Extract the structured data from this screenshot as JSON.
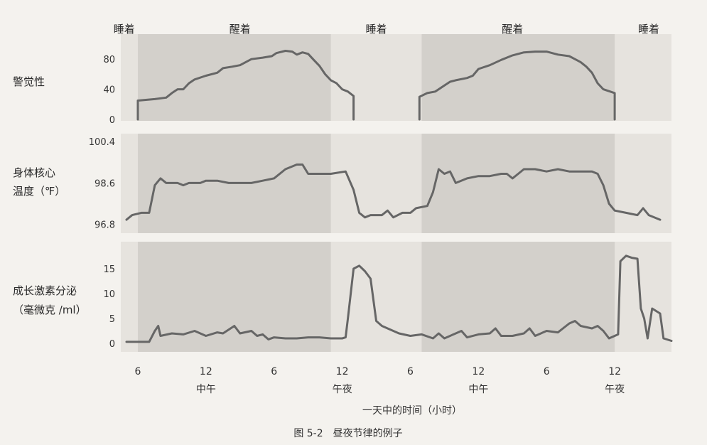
{
  "chart_data": {
    "type": "line",
    "caption": "图 5-2　昼夜节律的例子",
    "xlabel": "一天中的时间（小时）",
    "x_unit": "hours from 6 (first day)",
    "xlim": [
      4.5,
      53
    ],
    "x_ticks": [
      {
        "x": 6,
        "label": "6"
      },
      {
        "x": 12,
        "label": "12",
        "sub": "中午"
      },
      {
        "x": 18,
        "label": "6"
      },
      {
        "x": 24,
        "label": "12",
        "sub": "午夜"
      },
      {
        "x": 30,
        "label": "6"
      },
      {
        "x": 36,
        "label": "12",
        "sub": "中午"
      },
      {
        "x": 42,
        "label": "6"
      },
      {
        "x": 48,
        "label": "12",
        "sub": "午夜"
      }
    ],
    "states": [
      {
        "label": "睡着",
        "x_center": 4.8
      },
      {
        "label": "醒着",
        "x_center": 15
      },
      {
        "label": "睡着",
        "x_center": 27
      },
      {
        "label": "醒着",
        "x_center": 39
      },
      {
        "label": "睡着",
        "x_center": 51
      }
    ],
    "wake_periods": [
      [
        6,
        23
      ],
      [
        31,
        48
      ]
    ],
    "panels": [
      {
        "id": "alertness",
        "ylabel": [
          "警觉性"
        ],
        "ylim": [
          0,
          100
        ],
        "yticks": [
          {
            "v": 80,
            "label": "80"
          },
          {
            "v": 40,
            "label": "40"
          },
          {
            "v": 0,
            "label": "0"
          }
        ],
        "segments": [
          [
            [
              6,
              0
            ],
            [
              6,
              25
            ],
            [
              7.5,
              27
            ],
            [
              8.5,
              29
            ],
            [
              9,
              35
            ],
            [
              9.5,
              40
            ],
            [
              10,
              40
            ],
            [
              10.5,
              48
            ],
            [
              11,
              53
            ],
            [
              12,
              58
            ],
            [
              13,
              62
            ],
            [
              13.5,
              68
            ],
            [
              14.3,
              70
            ],
            [
              15,
              72
            ],
            [
              15.5,
              76
            ],
            [
              16,
              80
            ],
            [
              17,
              82
            ],
            [
              17.8,
              84
            ],
            [
              18.2,
              88
            ],
            [
              19,
              91
            ],
            [
              19.6,
              90
            ],
            [
              20,
              86
            ],
            [
              20.5,
              89
            ],
            [
              21,
              87
            ],
            [
              21.5,
              79
            ],
            [
              22,
              71
            ],
            [
              22.5,
              60
            ],
            [
              23,
              52
            ],
            [
              23.5,
              48
            ],
            [
              24,
              40
            ],
            [
              24.5,
              37
            ],
            [
              25,
              31
            ],
            [
              25,
              0
            ]
          ],
          [
            [
              30.8,
              0
            ],
            [
              30.8,
              30
            ],
            [
              31.5,
              35
            ],
            [
              32.2,
              37
            ],
            [
              33,
              45
            ],
            [
              33.5,
              50
            ],
            [
              34,
              52
            ],
            [
              35,
              55
            ],
            [
              35.5,
              58
            ],
            [
              36,
              67
            ],
            [
              37,
              72
            ],
            [
              38,
              79
            ],
            [
              39,
              85
            ],
            [
              40,
              89
            ],
            [
              41,
              90
            ],
            [
              42,
              90
            ],
            [
              42.5,
              88
            ],
            [
              43,
              86
            ],
            [
              44,
              84
            ],
            [
              44.5,
              80
            ],
            [
              45,
              76
            ],
            [
              45.5,
              70
            ],
            [
              46,
              62
            ],
            [
              46.5,
              48
            ],
            [
              47,
              40
            ],
            [
              48,
              35
            ],
            [
              48,
              0
            ]
          ]
        ]
      },
      {
        "id": "core-temperature",
        "ylabel": [
          "身体核心",
          "温度（℉）"
        ],
        "ylim": [
          96.6,
          100.5
        ],
        "yticks": [
          {
            "v": 100.4,
            "label": "100.4"
          },
          {
            "v": 98.6,
            "label": "98.6"
          },
          {
            "v": 96.8,
            "label": "96.8"
          }
        ],
        "segments": [
          [
            [
              5,
              97.0
            ],
            [
              5.5,
              97.2
            ],
            [
              6.3,
              97.3
            ],
            [
              7,
              97.3
            ],
            [
              7.5,
              98.5
            ],
            [
              8,
              98.8
            ],
            [
              8.5,
              98.6
            ],
            [
              9.5,
              98.6
            ],
            [
              10,
              98.5
            ],
            [
              10.5,
              98.6
            ],
            [
              11.5,
              98.6
            ],
            [
              12,
              98.7
            ],
            [
              13,
              98.7
            ],
            [
              14,
              98.6
            ],
            [
              15,
              98.6
            ],
            [
              16,
              98.6
            ],
            [
              17,
              98.7
            ],
            [
              18,
              98.8
            ],
            [
              19,
              99.2
            ],
            [
              20,
              99.4
            ],
            [
              20.5,
              99.4
            ],
            [
              21,
              99.0
            ],
            [
              23,
              99.0
            ],
            [
              24.3,
              99.1
            ],
            [
              25,
              98.3
            ],
            [
              25.5,
              97.3
            ],
            [
              26,
              97.1
            ],
            [
              26.5,
              97.2
            ],
            [
              27.5,
              97.2
            ],
            [
              28,
              97.4
            ],
            [
              28.5,
              97.1
            ],
            [
              29.3,
              97.3
            ],
            [
              30,
              97.3
            ],
            [
              30.5,
              97.5
            ],
            [
              31.5,
              97.6
            ],
            [
              32,
              98.2
            ],
            [
              32.5,
              99.2
            ],
            [
              33,
              99.0
            ],
            [
              33.5,
              99.1
            ],
            [
              34,
              98.6
            ],
            [
              35,
              98.8
            ],
            [
              36,
              98.9
            ],
            [
              37,
              98.9
            ],
            [
              38,
              99.0
            ],
            [
              38.5,
              99.0
            ],
            [
              39,
              98.8
            ],
            [
              39.5,
              99.0
            ],
            [
              40,
              99.2
            ],
            [
              41,
              99.2
            ],
            [
              42,
              99.1
            ],
            [
              43,
              99.2
            ],
            [
              44,
              99.1
            ],
            [
              45,
              99.1
            ],
            [
              46,
              99.1
            ],
            [
              46.5,
              99.0
            ],
            [
              47,
              98.5
            ],
            [
              47.5,
              97.7
            ],
            [
              48,
              97.4
            ],
            [
              49,
              97.3
            ],
            [
              50,
              97.2
            ],
            [
              50.5,
              97.5
            ],
            [
              51,
              97.2
            ],
            [
              52,
              97.0
            ]
          ]
        ]
      },
      {
        "id": "growth-hormone",
        "ylabel": [
          "成长激素分泌",
          "（毫微克 /ml）"
        ],
        "ylim": [
          -1,
          19
        ],
        "yticks": [
          {
            "v": 15,
            "label": "15"
          },
          {
            "v": 10,
            "label": "10"
          },
          {
            "v": 5,
            "label": "5"
          },
          {
            "v": 0,
            "label": "0"
          }
        ],
        "segments": [
          [
            [
              5,
              0.3
            ],
            [
              6,
              0.3
            ],
            [
              7,
              0.3
            ],
            [
              7.5,
              2.5
            ],
            [
              7.8,
              3.5
            ],
            [
              8,
              1.5
            ],
            [
              9,
              2
            ],
            [
              10,
              1.8
            ],
            [
              11,
              2.5
            ],
            [
              12,
              1.5
            ],
            [
              13,
              2.2
            ],
            [
              13.5,
              2
            ],
            [
              14.5,
              3.5
            ],
            [
              15,
              2
            ],
            [
              16,
              2.5
            ],
            [
              16.5,
              1.5
            ],
            [
              17,
              1.8
            ],
            [
              17.5,
              0.8
            ],
            [
              18,
              1.2
            ],
            [
              19,
              1
            ],
            [
              20,
              1
            ],
            [
              21,
              1.2
            ],
            [
              22,
              1.2
            ],
            [
              23,
              1
            ],
            [
              24,
              1
            ],
            [
              24.3,
              1.2
            ],
            [
              24.5,
              5
            ],
            [
              25,
              15
            ],
            [
              25.5,
              15.6
            ],
            [
              26,
              14.5
            ],
            [
              26.5,
              13
            ],
            [
              27,
              4.5
            ],
            [
              27.5,
              3.5
            ],
            [
              28,
              3
            ],
            [
              29,
              2
            ],
            [
              30,
              1.5
            ],
            [
              31,
              1.8
            ],
            [
              32,
              1
            ],
            [
              32.5,
              2
            ],
            [
              33,
              1
            ],
            [
              34,
              2
            ],
            [
              34.5,
              2.5
            ],
            [
              35,
              1.2
            ],
            [
              36,
              1.8
            ],
            [
              37,
              2
            ],
            [
              37.5,
              3
            ],
            [
              38,
              1.5
            ],
            [
              39,
              1.5
            ],
            [
              40,
              2
            ],
            [
              40.5,
              3
            ],
            [
              41,
              1.5
            ],
            [
              42,
              2.5
            ],
            [
              43,
              2.2
            ],
            [
              44,
              4
            ],
            [
              44.5,
              4.5
            ],
            [
              45,
              3.5
            ],
            [
              46,
              3
            ],
            [
              46.5,
              3.5
            ],
            [
              47,
              2.5
            ],
            [
              47.5,
              1
            ],
            [
              48,
              1.5
            ],
            [
              48.3,
              1.8
            ],
            [
              48.5,
              16.5
            ],
            [
              49,
              17.6
            ],
            [
              49.5,
              17.2
            ],
            [
              50,
              17
            ],
            [
              50.3,
              7
            ],
            [
              50.6,
              5
            ],
            [
              50.9,
              1
            ],
            [
              51.3,
              7
            ],
            [
              52,
              6
            ],
            [
              52.3,
              1
            ],
            [
              53,
              0.5
            ]
          ]
        ]
      }
    ]
  }
}
